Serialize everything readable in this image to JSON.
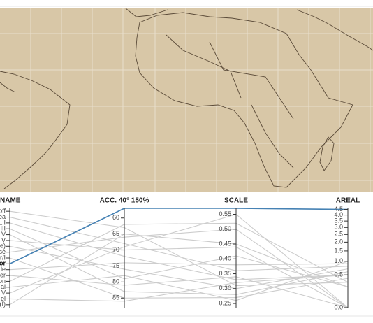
{
  "chart_data": {
    "type": "parallel",
    "axes": [
      {
        "label": "NAME"
      },
      {
        "label": "ACC. 40° 150%",
        "ylim": [
          88,
          57
        ],
        "yticks": [
          60,
          65,
          70,
          75,
          80,
          85
        ]
      },
      {
        "label": "SCALE",
        "ylim": [
          0.236,
          0.57
        ],
        "yticks": [
          0.55,
          {
            "value": 0.5,
            "label": "0.50"
          },
          0.45,
          {
            "value": 0.4,
            "label": "0.40"
          },
          0.35,
          {
            "value": 0.3,
            "label": "0.30"
          },
          0.25
        ]
      },
      {
        "label": "AREAL",
        "scale": "sqrt",
        "ylim": [
          0,
          4.6
        ],
        "yticks": [
          4.5,
          {
            "value": 4,
            "label": "4.0"
          },
          3.5,
          {
            "value": 3,
            "label": "3.0"
          },
          2.5,
          {
            "value": 2,
            "label": "2.0"
          },
          1.5,
          {
            "value": 1,
            "label": "1.0"
          },
          0.5,
          {
            "value": 0,
            "label": "0.0"
          }
        ]
      }
    ],
    "series": [
      {
        "name": "off",
        "color": "#cccccc",
        "values": [
          63,
          0.31,
          0.3
        ]
      },
      {
        "name": "ea",
        "color": "#cccccc",
        "values": [
          68,
          0.36,
          0.8
        ]
      },
      {
        "name": "L I",
        "color": "#cccccc",
        "values": [
          72,
          0.33,
          0.5
        ]
      },
      {
        "name": "III",
        "color": "#cccccc",
        "values": [
          79,
          0.41,
          0.2
        ]
      },
      {
        "name": "V",
        "color": "#cccccc",
        "values": [
          83,
          0.28,
          0.6
        ]
      },
      {
        "name": "V",
        "color": "#cccccc",
        "values": [
          70,
          0.44,
          0
        ]
      },
      {
        "name": "e)",
        "color": "#cccccc",
        "values": [
          76,
          0.3,
          0.7
        ]
      },
      {
        "name": "se",
        "color": "#cccccc",
        "values": [
          66,
          0.5,
          0
        ]
      },
      {
        "name": "r/I",
        "color": "#cccccc",
        "values": [
          85,
          0.27,
          0.4
        ]
      },
      {
        "name": "or",
        "color": "#4682b4",
        "highlight": true,
        "values": [
          57,
          0.57,
          4.5
        ]
      },
      {
        "name": "le",
        "color": "#cccccc",
        "values": [
          74,
          0.38,
          0.9
        ]
      },
      {
        "name": "er",
        "color": "#cccccc",
        "values": [
          81,
          0.34,
          0
        ]
      },
      {
        "name": "on",
        "color": "#cccccc",
        "values": [
          62,
          0.52,
          0.3
        ]
      },
      {
        "name": "al",
        "color": "#cccccc",
        "values": [
          78,
          0.26,
          1
        ]
      },
      {
        "name": "V",
        "color": "#cccccc",
        "values": [
          69,
          0.55,
          0
        ]
      },
      {
        "name": "el",
        "color": "#cccccc",
        "values": [
          86,
          0.32,
          0.5
        ]
      },
      {
        "name": "(I)",
        "color": "#cccccc",
        "values": [
          65,
          0.45,
          0.2
        ]
      }
    ]
  }
}
